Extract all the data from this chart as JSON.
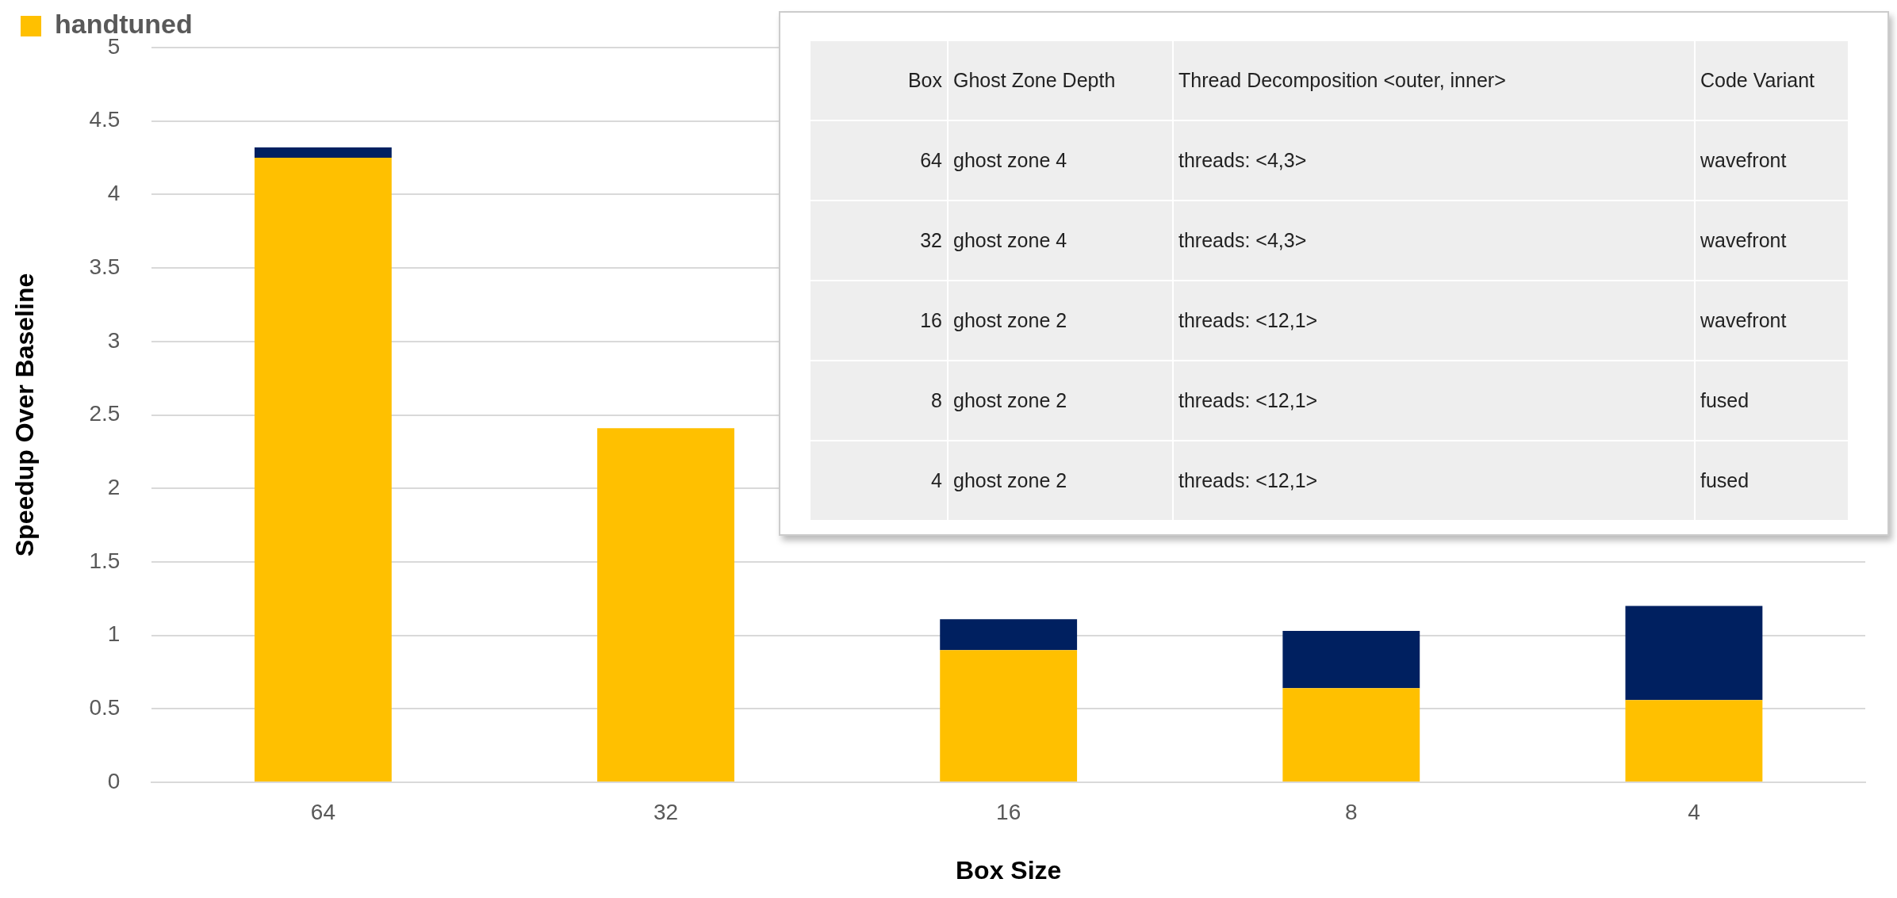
{
  "chart_data": {
    "type": "bar",
    "stacked": true,
    "xlabel": "Box Size",
    "ylabel": "Speedup Over Baseline",
    "categories": [
      "64",
      "32",
      "16",
      "8",
      "4"
    ],
    "series": [
      {
        "name": "handtuned",
        "color": "#ffc000",
        "values": [
          4.25,
          2.41,
          0.9,
          0.64,
          0.56
        ]
      },
      {
        "color": "#002060",
        "values": [
          0.07,
          null,
          0.21,
          0.39,
          0.64
        ]
      }
    ],
    "ylim": [
      0,
      5
    ],
    "yticks": [
      0,
      0.5,
      1,
      1.5,
      2,
      2.5,
      3,
      3.5,
      4,
      4.5,
      5
    ],
    "grid": "y",
    "legend": "top left",
    "annotations": [
      "Box",
      "Ghost Zone Depth",
      "Thread Decomposition <outer, inner>",
      "Code Variant",
      "64",
      "ghost zone 4",
      "threads: <4,3>",
      "wavefront",
      "32",
      "ghost zone 4",
      "threads: <4,3>",
      "wavefront",
      "16",
      "ghost zone 2",
      "threads: <12,1>",
      "wavefront",
      "8",
      "ghost zone 2",
      "threads: <12,1>",
      "fused",
      "4",
      "ghost zone 2",
      "threads: <12,1>",
      "fused"
    ]
  }
}
